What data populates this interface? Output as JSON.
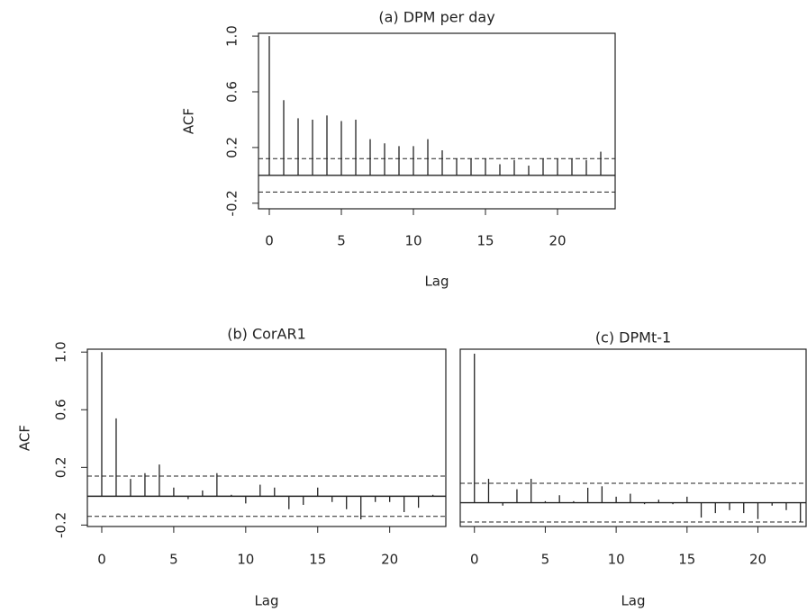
{
  "chart_data": [
    {
      "type": "stem",
      "title": "(a) DPM per day",
      "x_label": "Lag",
      "y_label": "ACF",
      "x": [
        0,
        1,
        2,
        3,
        4,
        5,
        6,
        7,
        8,
        9,
        10,
        11,
        12,
        13,
        14,
        15,
        16,
        17,
        18,
        19,
        20,
        21,
        22,
        23
      ],
      "values": [
        1.0,
        0.54,
        0.41,
        0.4,
        0.43,
        0.39,
        0.4,
        0.26,
        0.23,
        0.21,
        0.21,
        0.26,
        0.18,
        0.12,
        0.12,
        0.12,
        0.08,
        0.11,
        0.07,
        0.12,
        0.12,
        0.12,
        0.11,
        0.17
      ],
      "ci": [
        0.12,
        -0.12
      ],
      "xlim": [
        -0.75,
        24
      ],
      "ylim": [
        -0.24,
        1.02
      ],
      "xticks": [
        0,
        5,
        10,
        15,
        20
      ],
      "yticks": [
        {
          "value": -0.2,
          "label": "-0.2"
        },
        {
          "value": 0.2,
          "label": "0.2"
        },
        {
          "value": 0.6,
          "label": "0.6"
        },
        {
          "value": 1.0,
          "label": "1.0"
        }
      ]
    },
    {
      "type": "stem",
      "title": "(b) CorAR1",
      "x_label": "Lag",
      "y_label": "ACF",
      "x": [
        0,
        1,
        2,
        3,
        4,
        5,
        6,
        7,
        8,
        9,
        10,
        11,
        12,
        13,
        14,
        15,
        16,
        17,
        18,
        19,
        20,
        21,
        22,
        23
      ],
      "values": [
        1.0,
        0.54,
        0.12,
        0.16,
        0.22,
        0.06,
        -0.02,
        0.04,
        0.16,
        0.01,
        -0.05,
        0.08,
        0.06,
        -0.09,
        -0.06,
        0.06,
        -0.04,
        -0.09,
        -0.16,
        -0.04,
        -0.04,
        -0.11,
        -0.08,
        0.01
      ],
      "ci": [
        0.14,
        -0.14
      ],
      "xlim": [
        -1,
        23.9
      ],
      "ylim": [
        -0.21,
        1.02
      ],
      "xticks": [
        0,
        5,
        10,
        15,
        20
      ],
      "yticks": [
        {
          "value": -0.2,
          "label": "-0.2"
        },
        {
          "value": 0.2,
          "label": "0.2"
        },
        {
          "value": 0.6,
          "label": "0.6"
        },
        {
          "value": 1.0,
          "label": "1.0"
        }
      ]
    },
    {
      "type": "stem",
      "title": "(c) DPMt-1",
      "x_label": "Lag",
      "x": [
        0,
        1,
        2,
        3,
        4,
        5,
        6,
        7,
        8,
        9,
        10,
        11,
        12,
        13,
        14,
        15,
        16,
        17,
        18,
        19,
        20,
        21,
        22,
        23
      ],
      "values": [
        1.0,
        0.16,
        -0.02,
        0.09,
        0.16,
        0.01,
        0.05,
        0.01,
        0.1,
        0.11,
        0.04,
        0.06,
        -0.01,
        0.02,
        -0.01,
        0.04,
        -0.1,
        -0.07,
        -0.05,
        -0.07,
        -0.11,
        -0.02,
        -0.05,
        -0.13
      ],
      "ci": [
        0.13,
        -0.13
      ],
      "xlim": [
        -1,
        23.4
      ],
      "ylim": [
        -0.16,
        1.03
      ],
      "xticks": [
        0,
        5,
        10,
        15,
        20
      ]
    }
  ]
}
